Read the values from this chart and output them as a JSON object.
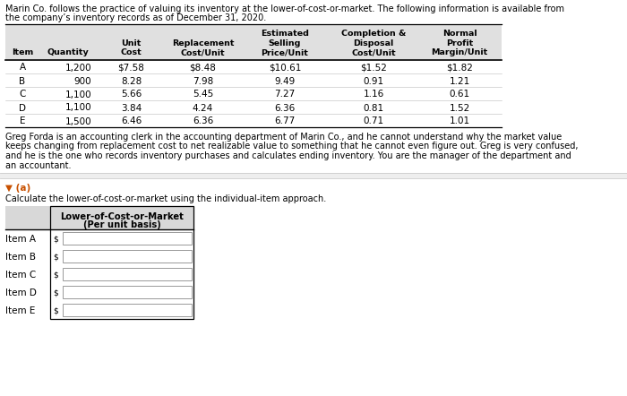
{
  "intro_line1": "Marin Co. follows the practice of valuing its inventory at the lower-of-cost-or-market. The following information is available from",
  "intro_line2": "the company’s inventory records as of December 31, 2020.",
  "table_headers": [
    "Item",
    "Quantity",
    "Unit\nCost",
    "Replacement\nCost/Unit",
    "Estimated\nSelling\nPrice/Unit",
    "Completion &\nDisposal\nCost/Unit",
    "Normal\nProfit\nMargin/Unit"
  ],
  "table_data": [
    [
      "A",
      "1,200",
      "$7.58",
      "$8.48",
      "$10.61",
      "$1.52",
      "$1.82"
    ],
    [
      "B",
      "900",
      "8.28",
      "7.98",
      "9.49",
      "0.91",
      "1.21"
    ],
    [
      "C",
      "1,100",
      "5.66",
      "5.45",
      "7.27",
      "1.16",
      "0.61"
    ],
    [
      "D",
      "1,100",
      "3.84",
      "4.24",
      "6.36",
      "0.81",
      "1.52"
    ],
    [
      "E",
      "1,500",
      "6.46",
      "6.36",
      "6.77",
      "0.71",
      "1.01"
    ]
  ],
  "para_lines": [
    "Greg Forda is an accounting clerk in the accounting department of Marin Co., and he cannot understand why the market value",
    "keeps changing from replacement cost to net realizable value to something that he cannot even figure out. Greg is very confused,",
    "and he is the one who records inventory purchases and calculates ending inventory. You are the manager of the department and",
    "an accountant."
  ],
  "section_label": "▼ (a)",
  "section_instruction": "Calculate the lower-of-cost-or-market using the individual-item approach.",
  "answer_header1": "Lower-of-Cost-or-Market",
  "answer_header2": "(Per unit basis)",
  "answer_items": [
    "Item A",
    "Item B",
    "Item C",
    "Item D",
    "Item E"
  ],
  "bg_color": "#ffffff",
  "table_header_bg": "#e0e0e0",
  "answer_header_bg": "#d8d8d8",
  "section_color": "#c85000",
  "input_bg": "#ffffff",
  "input_border": "#999999"
}
